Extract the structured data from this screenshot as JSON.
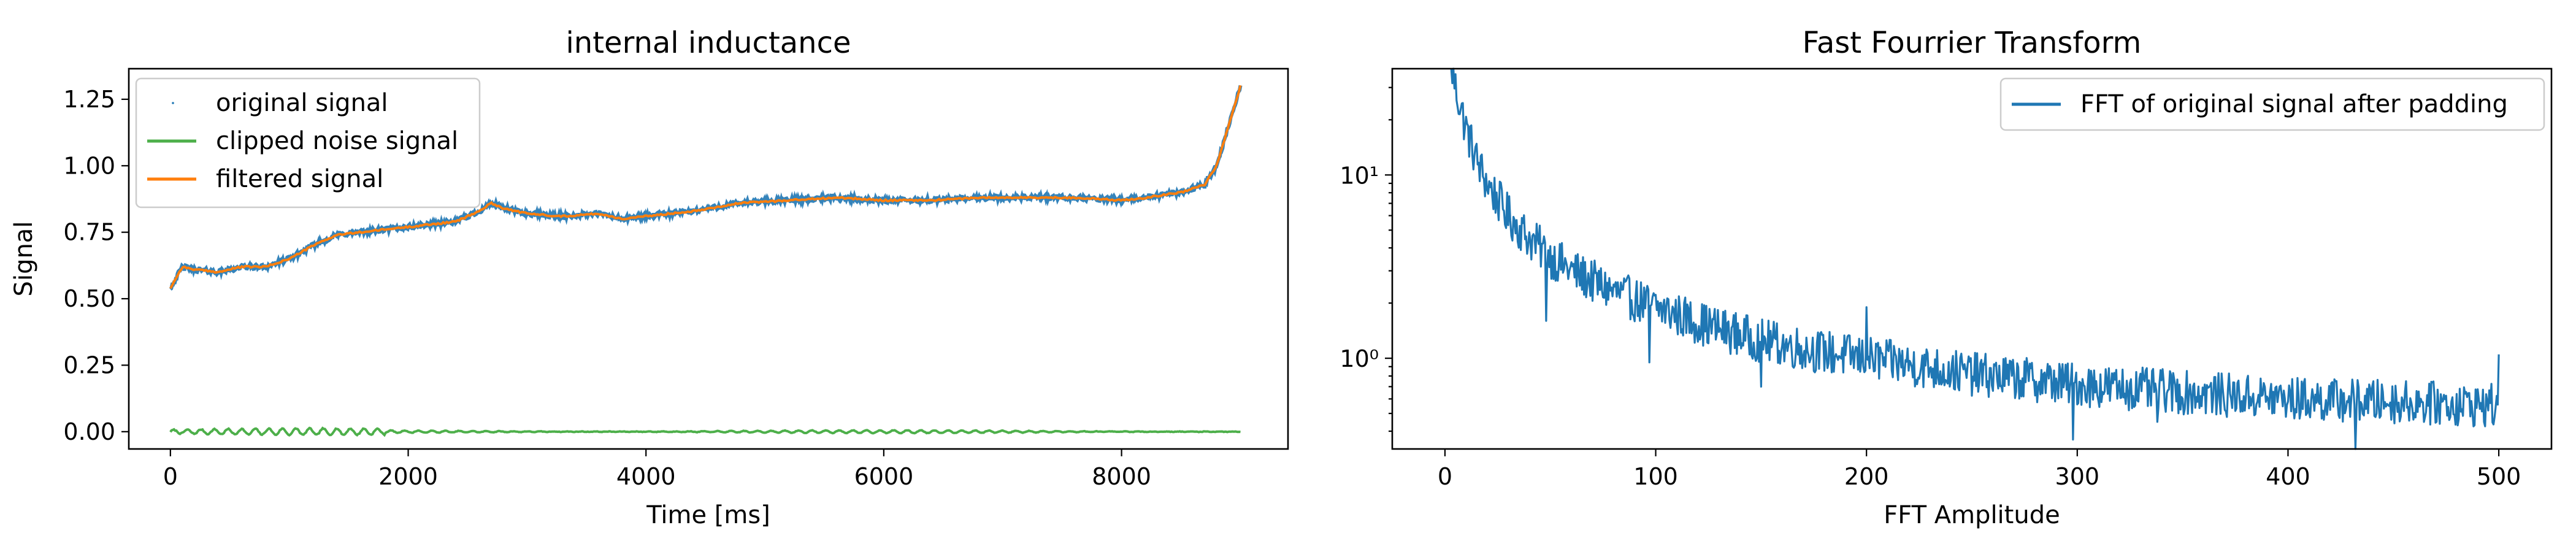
{
  "chart_data": [
    {
      "type": "line",
      "title": "internal inductance",
      "xlabel": "Time [ms]",
      "ylabel": "Signal",
      "xlim": [
        -350,
        9400
      ],
      "ylim": [
        -0.065,
        1.365
      ],
      "xticks": [
        0,
        2000,
        4000,
        6000,
        8000
      ],
      "xtick_labels": [
        "0",
        "2000",
        "4000",
        "6000",
        "8000"
      ],
      "yticks": [
        0.0,
        0.25,
        0.5,
        0.75,
        1.0,
        1.25
      ],
      "ytick_labels": [
        "0.00",
        "0.25",
        "0.50",
        "0.75",
        "1.00",
        "1.25"
      ],
      "grid": false,
      "legend_position": "top-left",
      "series": [
        {
          "name": "original signal",
          "style": "points",
          "color": "#1f77b4",
          "x": [
            0,
            100,
            200,
            400,
            600,
            800,
            1000,
            1200,
            1400,
            1600,
            1800,
            2000,
            2200,
            2400,
            2600,
            2700,
            2800,
            3000,
            3300,
            3600,
            3800,
            4000,
            4400,
            4800,
            5200,
            5600,
            6000,
            6400,
            6800,
            7200,
            7600,
            8000,
            8200,
            8500,
            8700,
            8800,
            8900,
            9000
          ],
          "y": [
            0.54,
            0.62,
            0.61,
            0.6,
            0.62,
            0.62,
            0.65,
            0.7,
            0.74,
            0.75,
            0.76,
            0.77,
            0.78,
            0.79,
            0.83,
            0.86,
            0.84,
            0.82,
            0.81,
            0.82,
            0.8,
            0.81,
            0.83,
            0.86,
            0.87,
            0.88,
            0.87,
            0.87,
            0.88,
            0.88,
            0.88,
            0.87,
            0.88,
            0.9,
            0.93,
            1.0,
            1.15,
            1.3
          ]
        },
        {
          "name": "clipped noise signal",
          "style": "line",
          "color": "#4daf4a",
          "x": [
            0,
            9000
          ],
          "y": [
            0.0,
            0.0
          ],
          "amplitude": 0.012
        },
        {
          "name": "filtered signal",
          "style": "line",
          "color": "#ff7f0e",
          "x": [
            0,
            100,
            200,
            400,
            600,
            800,
            1000,
            1200,
            1400,
            1600,
            1800,
            2000,
            2200,
            2400,
            2600,
            2700,
            2800,
            3000,
            3300,
            3600,
            3800,
            4000,
            4400,
            4800,
            5200,
            5600,
            6000,
            6400,
            6800,
            7200,
            7600,
            8000,
            8200,
            8500,
            8700,
            8800,
            8900,
            9000
          ],
          "y": [
            0.54,
            0.62,
            0.61,
            0.6,
            0.62,
            0.62,
            0.65,
            0.7,
            0.74,
            0.75,
            0.76,
            0.77,
            0.78,
            0.79,
            0.83,
            0.86,
            0.84,
            0.82,
            0.81,
            0.82,
            0.8,
            0.81,
            0.83,
            0.86,
            0.87,
            0.88,
            0.87,
            0.87,
            0.88,
            0.88,
            0.88,
            0.87,
            0.88,
            0.9,
            0.93,
            1.0,
            1.15,
            1.3
          ]
        }
      ]
    },
    {
      "type": "line",
      "title": "Fast Fourrier Transform",
      "xlabel": "FFT Amplitude",
      "ylabel": "",
      "xlim": [
        -25,
        525
      ],
      "ylim": [
        0.32,
        38
      ],
      "yscale": "log",
      "xticks": [
        0,
        100,
        200,
        300,
        400,
        500
      ],
      "xtick_labels": [
        "0",
        "100",
        "200",
        "300",
        "400",
        "500"
      ],
      "yticks": [
        1,
        10
      ],
      "ytick_labels": [
        "10⁰",
        "10¹"
      ],
      "grid": false,
      "legend_position": "top-right",
      "series": [
        {
          "name": "FFT of original signal after padding",
          "style": "line",
          "color": "#1f77b4",
          "x": [
            3,
            5,
            10,
            15,
            20,
            30,
            40,
            50,
            60,
            80,
            100,
            125,
            150,
            175,
            200,
            250,
            300,
            350,
            400,
            450,
            500
          ],
          "y": [
            40,
            30,
            18,
            12,
            9,
            6,
            4.5,
            3.6,
            3.0,
            2.3,
            1.9,
            1.5,
            1.25,
            1.1,
            1.0,
            0.82,
            0.72,
            0.65,
            0.6,
            0.58,
            0.55
          ],
          "dips": [
            [
              48,
              1.6
            ],
            [
              97,
              0.95
            ],
            [
              150,
              0.7
            ],
            [
              200,
              0.28
            ],
            [
              298,
              0.36
            ],
            [
              338,
              0.45
            ],
            [
              432,
              0.3
            ]
          ],
          "spikes": [
            [
              200,
              1.9
            ],
            [
              500,
              1.05
            ]
          ]
        }
      ]
    }
  ]
}
